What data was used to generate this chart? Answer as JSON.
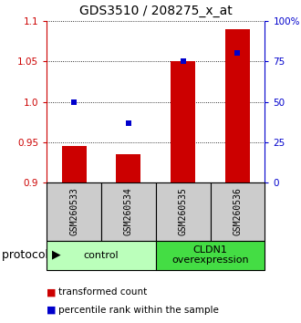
{
  "title": "GDS3510 / 208275_x_at",
  "samples": [
    "GSM260533",
    "GSM260534",
    "GSM260535",
    "GSM260536"
  ],
  "transformed_counts": [
    0.945,
    0.935,
    1.05,
    1.09
  ],
  "percentile_ranks": [
    50,
    37,
    75,
    80
  ],
  "ylim_left": [
    0.9,
    1.1
  ],
  "ylim_right": [
    0,
    100
  ],
  "yticks_left": [
    0.9,
    0.95,
    1.0,
    1.05,
    1.1
  ],
  "yticks_right": [
    0,
    25,
    50,
    75,
    100
  ],
  "ytick_labels_right": [
    "0",
    "25",
    "50",
    "75",
    "100%"
  ],
  "groups": [
    {
      "label": "control",
      "samples": [
        0,
        1
      ],
      "color": "#bbffbb"
    },
    {
      "label": "CLDN1\noverexpression",
      "samples": [
        2,
        3
      ],
      "color": "#44dd44"
    }
  ],
  "bar_color": "#cc0000",
  "dot_color": "#0000cc",
  "bar_width": 0.45,
  "background_color": "#ffffff",
  "sample_box_color": "#cccccc",
  "title_fontsize": 10,
  "tick_fontsize": 7.5,
  "sample_fontsize": 7,
  "group_fontsize": 8,
  "legend_fontsize": 7.5,
  "protocol_fontsize": 9
}
